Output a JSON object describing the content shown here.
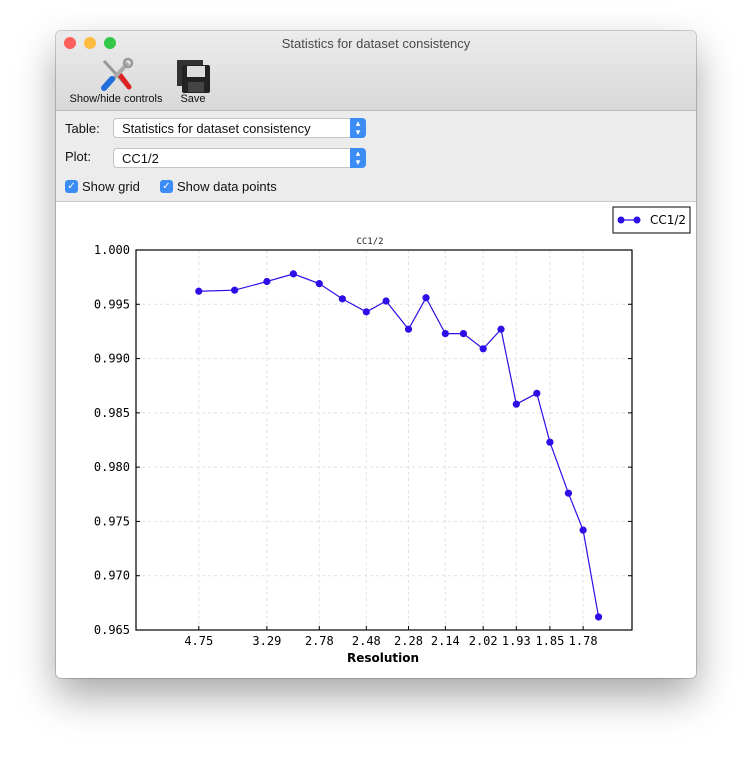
{
  "window": {
    "title": "Statistics for dataset consistency",
    "traffic_lights": {
      "close": "#fc605c",
      "minimize": "#fdbc40",
      "zoom": "#34c84a"
    }
  },
  "toolbar": {
    "items": [
      {
        "label": "Show/hide controls",
        "icon": "tools-icon"
      },
      {
        "label": "Save",
        "icon": "floppy-disk-icon"
      }
    ]
  },
  "controls": {
    "table_label": "Table:",
    "table_value": "Statistics for dataset consistency",
    "plot_label": "Plot:",
    "plot_value": "CC1/2",
    "show_grid_label": "Show grid",
    "show_grid": true,
    "show_points_label": "Show data points",
    "show_points": true
  },
  "chart_data": {
    "type": "line",
    "title": "CC1/2",
    "xlabel": "Resolution",
    "ylabel": "",
    "x_scale": "reciprocal-square (1/d^2)",
    "xlim": [
      null,
      1.69
    ],
    "ylim": [
      0.965,
      1.0
    ],
    "grid": true,
    "legend_position": "top-right",
    "color": "#2d0ee6",
    "xticks": [
      "4.75",
      "3.29",
      "2.78",
      "2.48",
      "2.28",
      "2.14",
      "2.02",
      "1.93",
      "1.85",
      "1.78"
    ],
    "yticks": [
      "0.965",
      "0.970",
      "0.975",
      "0.980",
      "0.985",
      "0.990",
      "0.995",
      "1.000"
    ],
    "series": [
      {
        "name": "CC1/2",
        "x": [
          4.75,
          3.79,
          3.29,
          3.0,
          2.78,
          2.62,
          2.48,
          2.38,
          2.28,
          2.21,
          2.14,
          2.08,
          2.02,
          1.97,
          1.93,
          1.88,
          1.85,
          1.81,
          1.78,
          1.75
        ],
        "y": [
          0.9962,
          0.9963,
          0.9971,
          0.9978,
          0.9969,
          0.9955,
          0.9943,
          0.9953,
          0.9927,
          0.9956,
          0.9923,
          0.9923,
          0.9909,
          0.9927,
          0.9858,
          0.9868,
          0.9823,
          0.9776,
          0.9742,
          0.9662
        ]
      }
    ]
  }
}
